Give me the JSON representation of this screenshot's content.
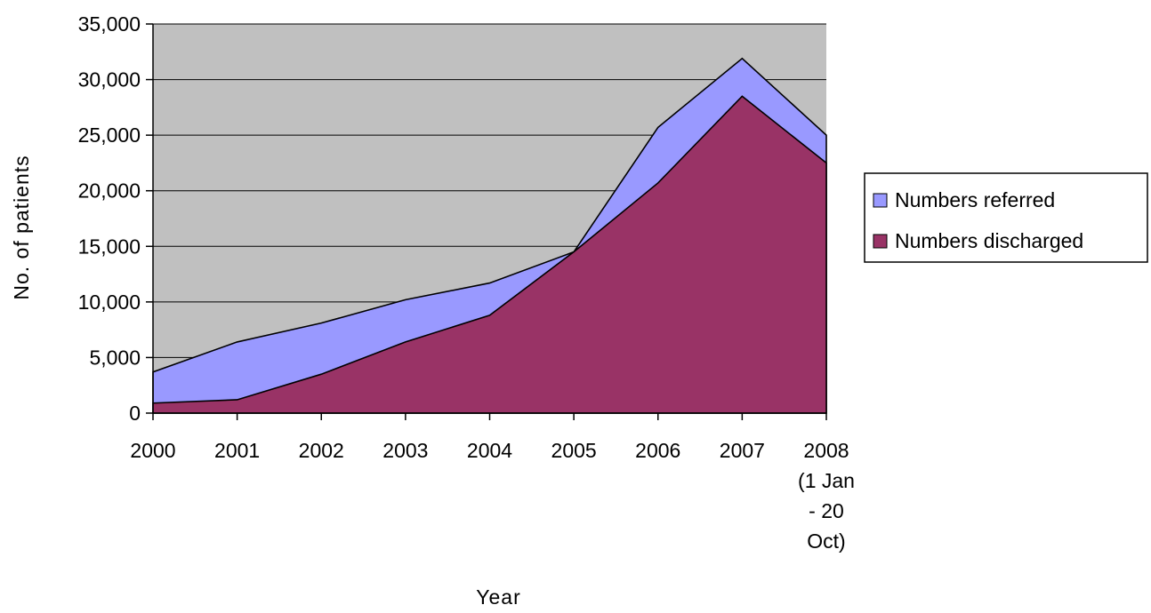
{
  "chart_data": {
    "type": "area",
    "title": "",
    "xlabel": "Year",
    "ylabel": "No. of patients",
    "categories": [
      "2000",
      "2001",
      "2002",
      "2003",
      "2004",
      "2005",
      "2006",
      "2007",
      "2008 (1 Jan - 20 Oct)"
    ],
    "category_label_lines": [
      [
        "2000"
      ],
      [
        "2001"
      ],
      [
        "2002"
      ],
      [
        "2003"
      ],
      [
        "2004"
      ],
      [
        "2005"
      ],
      [
        "2006"
      ],
      [
        "2007"
      ],
      [
        "2008",
        "(1 Jan",
        "- 20",
        "Oct)"
      ]
    ],
    "series": [
      {
        "name": "Numbers referred",
        "color": "#9999ff",
        "values": [
          3700,
          6400,
          8100,
          10200,
          11700,
          14500,
          25700,
          31900,
          25000
        ]
      },
      {
        "name": "Numbers discharged",
        "color": "#993366",
        "values": [
          900,
          1200,
          3500,
          6400,
          8800,
          14500,
          20700,
          28500,
          22500
        ]
      }
    ],
    "ylim": [
      0,
      35000
    ],
    "yticks": [
      0,
      5000,
      10000,
      15000,
      20000,
      25000,
      30000,
      35000
    ],
    "ytick_labels": [
      "0",
      "5,000",
      "10,000",
      "15,000",
      "20,000",
      "25,000",
      "30,000",
      "35,000"
    ],
    "plot_background": "#c0c0c0",
    "grid": true,
    "legend_position": "right"
  }
}
